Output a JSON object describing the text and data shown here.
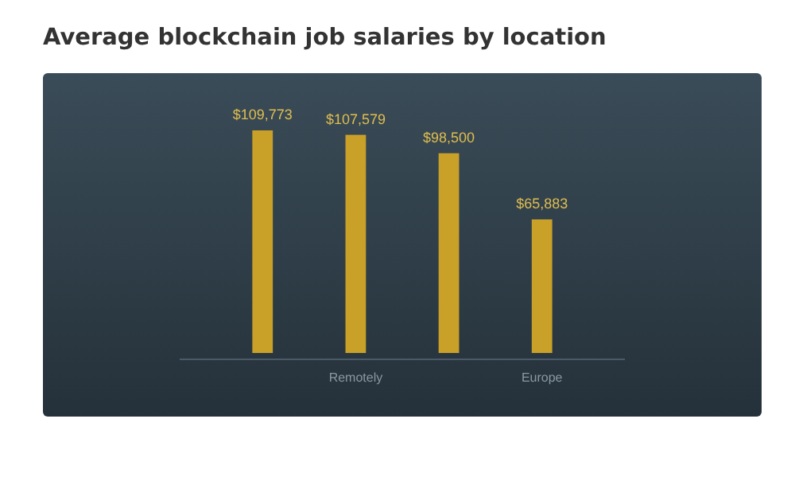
{
  "chart_data": {
    "type": "bar",
    "title": "Average blockchain job salaries by location",
    "categories": [
      null,
      "Remotely",
      null,
      "Europe"
    ],
    "values": [
      109773,
      107579,
      98500,
      65883
    ],
    "value_labels": [
      "$109,773",
      "$107,579",
      "$98,500",
      "$65,883"
    ],
    "color": "#c9a128"
  }
}
